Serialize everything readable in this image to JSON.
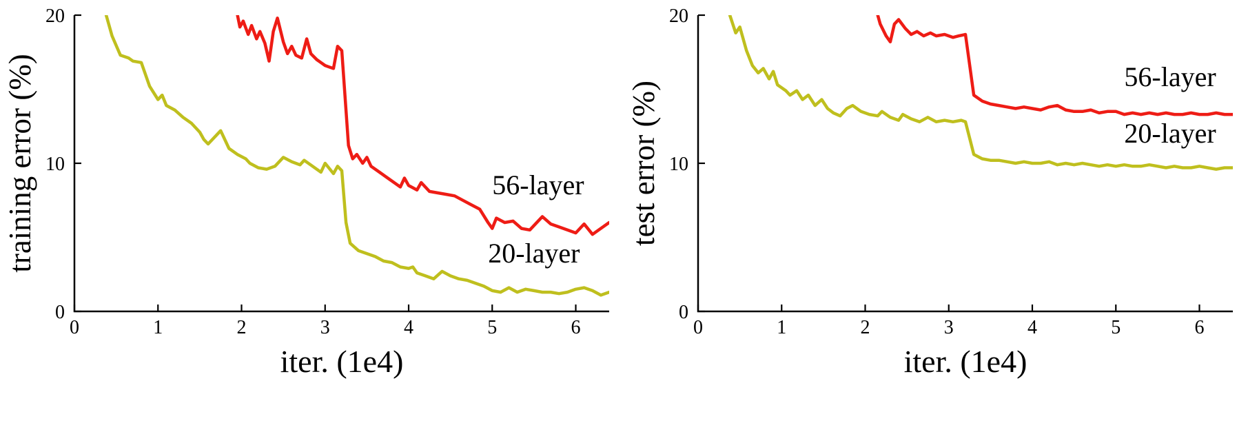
{
  "figure": {
    "background": "#ffffff",
    "axis_color": "#000000"
  },
  "chart_data": [
    {
      "type": "line",
      "title": "",
      "xlabel": "iter. (1e4)",
      "ylabel": "training error (%)",
      "xlim": [
        0,
        6.4
      ],
      "ylim": [
        0,
        20
      ],
      "xticks": [
        0,
        1,
        2,
        3,
        4,
        5,
        6
      ],
      "yticks": [
        0,
        10,
        20
      ],
      "grid": false,
      "legend": "none",
      "series": [
        {
          "name": "56-layer",
          "color": "#ee1c15",
          "points": [
            [
              1.93,
              20.6
            ],
            [
              1.98,
              19.2
            ],
            [
              2.02,
              19.6
            ],
            [
              2.08,
              18.7
            ],
            [
              2.12,
              19.3
            ],
            [
              2.18,
              18.4
            ],
            [
              2.22,
              18.9
            ],
            [
              2.28,
              18.1
            ],
            [
              2.33,
              16.9
            ],
            [
              2.38,
              18.9
            ],
            [
              2.43,
              19.8
            ],
            [
              2.5,
              18.2
            ],
            [
              2.55,
              17.4
            ],
            [
              2.6,
              17.9
            ],
            [
              2.65,
              17.3
            ],
            [
              2.72,
              17.1
            ],
            [
              2.78,
              18.4
            ],
            [
              2.83,
              17.4
            ],
            [
              2.9,
              17.0
            ],
            [
              2.95,
              16.8
            ],
            [
              3.0,
              16.6
            ],
            [
              3.05,
              16.5
            ],
            [
              3.1,
              16.4
            ],
            [
              3.15,
              17.9
            ],
            [
              3.2,
              17.6
            ],
            [
              3.28,
              11.2
            ],
            [
              3.33,
              10.3
            ],
            [
              3.38,
              10.6
            ],
            [
              3.45,
              10.0
            ],
            [
              3.5,
              10.4
            ],
            [
              3.55,
              9.8
            ],
            [
              3.65,
              9.4
            ],
            [
              3.75,
              9.0
            ],
            [
              3.85,
              8.6
            ],
            [
              3.9,
              8.4
            ],
            [
              3.95,
              9.0
            ],
            [
              4.0,
              8.5
            ],
            [
              4.1,
              8.2
            ],
            [
              4.15,
              8.7
            ],
            [
              4.25,
              8.1
            ],
            [
              4.35,
              8.0
            ],
            [
              4.45,
              7.9
            ],
            [
              4.55,
              7.8
            ],
            [
              4.65,
              7.5
            ],
            [
              4.75,
              7.2
            ],
            [
              4.85,
              6.9
            ],
            [
              4.95,
              6.0
            ],
            [
              5.0,
              5.6
            ],
            [
              5.05,
              6.3
            ],
            [
              5.15,
              6.0
            ],
            [
              5.25,
              6.1
            ],
            [
              5.35,
              5.6
            ],
            [
              5.45,
              5.5
            ],
            [
              5.55,
              6.1
            ],
            [
              5.6,
              6.4
            ],
            [
              5.7,
              5.9
            ],
            [
              5.8,
              5.7
            ],
            [
              5.9,
              5.5
            ],
            [
              6.0,
              5.3
            ],
            [
              6.1,
              5.9
            ],
            [
              6.2,
              5.2
            ],
            [
              6.3,
              5.6
            ],
            [
              6.4,
              6.0
            ]
          ]
        },
        {
          "name": "20-layer",
          "color": "#bfbf1e",
          "points": [
            [
              0.34,
              21.5
            ],
            [
              0.38,
              20.0
            ],
            [
              0.45,
              18.6
            ],
            [
              0.55,
              17.3
            ],
            [
              0.65,
              17.1
            ],
            [
              0.7,
              16.9
            ],
            [
              0.8,
              16.8
            ],
            [
              0.9,
              15.2
            ],
            [
              1.0,
              14.3
            ],
            [
              1.05,
              14.6
            ],
            [
              1.1,
              13.9
            ],
            [
              1.2,
              13.6
            ],
            [
              1.3,
              13.1
            ],
            [
              1.4,
              12.7
            ],
            [
              1.5,
              12.1
            ],
            [
              1.55,
              11.6
            ],
            [
              1.6,
              11.3
            ],
            [
              1.7,
              11.9
            ],
            [
              1.75,
              12.2
            ],
            [
              1.85,
              11.0
            ],
            [
              1.95,
              10.6
            ],
            [
              2.05,
              10.3
            ],
            [
              2.1,
              10.0
            ],
            [
              2.2,
              9.7
            ],
            [
              2.3,
              9.6
            ],
            [
              2.4,
              9.8
            ],
            [
              2.5,
              10.4
            ],
            [
              2.6,
              10.1
            ],
            [
              2.7,
              9.9
            ],
            [
              2.75,
              10.2
            ],
            [
              2.85,
              9.8
            ],
            [
              2.95,
              9.4
            ],
            [
              3.0,
              10.0
            ],
            [
              3.1,
              9.3
            ],
            [
              3.15,
              9.8
            ],
            [
              3.2,
              9.5
            ],
            [
              3.25,
              6.0
            ],
            [
              3.3,
              4.6
            ],
            [
              3.4,
              4.1
            ],
            [
              3.5,
              3.9
            ],
            [
              3.6,
              3.7
            ],
            [
              3.7,
              3.4
            ],
            [
              3.8,
              3.3
            ],
            [
              3.9,
              3.0
            ],
            [
              4.0,
              2.9
            ],
            [
              4.05,
              3.0
            ],
            [
              4.1,
              2.6
            ],
            [
              4.2,
              2.4
            ],
            [
              4.3,
              2.2
            ],
            [
              4.4,
              2.7
            ],
            [
              4.5,
              2.4
            ],
            [
              4.6,
              2.2
            ],
            [
              4.7,
              2.1
            ],
            [
              4.8,
              1.9
            ],
            [
              4.9,
              1.7
            ],
            [
              5.0,
              1.4
            ],
            [
              5.1,
              1.3
            ],
            [
              5.2,
              1.6
            ],
            [
              5.3,
              1.3
            ],
            [
              5.4,
              1.5
            ],
            [
              5.5,
              1.4
            ],
            [
              5.6,
              1.3
            ],
            [
              5.7,
              1.3
            ],
            [
              5.8,
              1.2
            ],
            [
              5.9,
              1.3
            ],
            [
              6.0,
              1.5
            ],
            [
              6.1,
              1.6
            ],
            [
              6.2,
              1.4
            ],
            [
              6.3,
              1.1
            ],
            [
              6.4,
              1.3
            ]
          ]
        }
      ],
      "annotations": [
        {
          "text": "56-layer",
          "x": 5.55,
          "y": 7.9
        },
        {
          "text": "20-layer",
          "x": 5.5,
          "y": 3.3
        }
      ]
    },
    {
      "type": "line",
      "title": "",
      "xlabel": "iter. (1e4)",
      "ylabel": "test error (%)",
      "xlim": [
        0,
        6.4
      ],
      "ylim": [
        0,
        20
      ],
      "xticks": [
        0,
        1,
        2,
        3,
        4,
        5,
        6
      ],
      "yticks": [
        0,
        10,
        20
      ],
      "grid": false,
      "legend": "none",
      "series": [
        {
          "name": "56-layer",
          "color": "#ee1c15",
          "points": [
            [
              2.12,
              20.6
            ],
            [
              2.18,
              19.4
            ],
            [
              2.25,
              18.6
            ],
            [
              2.3,
              18.2
            ],
            [
              2.35,
              19.4
            ],
            [
              2.4,
              19.7
            ],
            [
              2.48,
              19.1
            ],
            [
              2.55,
              18.7
            ],
            [
              2.62,
              18.9
            ],
            [
              2.7,
              18.6
            ],
            [
              2.78,
              18.8
            ],
            [
              2.85,
              18.6
            ],
            [
              2.95,
              18.7
            ],
            [
              3.05,
              18.5
            ],
            [
              3.12,
              18.6
            ],
            [
              3.2,
              18.7
            ],
            [
              3.3,
              14.6
            ],
            [
              3.4,
              14.2
            ],
            [
              3.5,
              14.0
            ],
            [
              3.6,
              13.9
            ],
            [
              3.7,
              13.8
            ],
            [
              3.8,
              13.7
            ],
            [
              3.9,
              13.8
            ],
            [
              4.0,
              13.7
            ],
            [
              4.1,
              13.6
            ],
            [
              4.2,
              13.8
            ],
            [
              4.3,
              13.9
            ],
            [
              4.4,
              13.6
            ],
            [
              4.5,
              13.5
            ],
            [
              4.6,
              13.5
            ],
            [
              4.7,
              13.6
            ],
            [
              4.8,
              13.4
            ],
            [
              4.9,
              13.5
            ],
            [
              5.0,
              13.5
            ],
            [
              5.1,
              13.3
            ],
            [
              5.2,
              13.4
            ],
            [
              5.3,
              13.3
            ],
            [
              5.4,
              13.4
            ],
            [
              5.5,
              13.3
            ],
            [
              5.6,
              13.4
            ],
            [
              5.7,
              13.3
            ],
            [
              5.8,
              13.3
            ],
            [
              5.9,
              13.4
            ],
            [
              6.0,
              13.3
            ],
            [
              6.1,
              13.3
            ],
            [
              6.2,
              13.4
            ],
            [
              6.3,
              13.3
            ],
            [
              6.4,
              13.3
            ]
          ]
        },
        {
          "name": "20-layer",
          "color": "#bfbf1e",
          "points": [
            [
              0.34,
              21.5
            ],
            [
              0.38,
              20.0
            ],
            [
              0.45,
              18.8
            ],
            [
              0.5,
              19.2
            ],
            [
              0.58,
              17.6
            ],
            [
              0.65,
              16.6
            ],
            [
              0.72,
              16.1
            ],
            [
              0.78,
              16.4
            ],
            [
              0.85,
              15.7
            ],
            [
              0.9,
              16.2
            ],
            [
              0.95,
              15.3
            ],
            [
              1.05,
              14.9
            ],
            [
              1.1,
              14.6
            ],
            [
              1.18,
              14.9
            ],
            [
              1.25,
              14.3
            ],
            [
              1.32,
              14.6
            ],
            [
              1.4,
              13.9
            ],
            [
              1.48,
              14.3
            ],
            [
              1.55,
              13.7
            ],
            [
              1.62,
              13.4
            ],
            [
              1.7,
              13.2
            ],
            [
              1.78,
              13.7
            ],
            [
              1.85,
              13.9
            ],
            [
              1.95,
              13.5
            ],
            [
              2.05,
              13.3
            ],
            [
              2.15,
              13.2
            ],
            [
              2.2,
              13.5
            ],
            [
              2.3,
              13.1
            ],
            [
              2.4,
              12.9
            ],
            [
              2.45,
              13.3
            ],
            [
              2.55,
              13.0
            ],
            [
              2.65,
              12.8
            ],
            [
              2.75,
              13.1
            ],
            [
              2.85,
              12.8
            ],
            [
              2.95,
              12.9
            ],
            [
              3.05,
              12.8
            ],
            [
              3.15,
              12.9
            ],
            [
              3.2,
              12.8
            ],
            [
              3.3,
              10.6
            ],
            [
              3.4,
              10.3
            ],
            [
              3.5,
              10.2
            ],
            [
              3.6,
              10.2
            ],
            [
              3.7,
              10.1
            ],
            [
              3.8,
              10.0
            ],
            [
              3.9,
              10.1
            ],
            [
              4.0,
              10.0
            ],
            [
              4.1,
              10.0
            ],
            [
              4.2,
              10.1
            ],
            [
              4.3,
              9.9
            ],
            [
              4.4,
              10.0
            ],
            [
              4.5,
              9.9
            ],
            [
              4.6,
              10.0
            ],
            [
              4.7,
              9.9
            ],
            [
              4.8,
              9.8
            ],
            [
              4.9,
              9.9
            ],
            [
              5.0,
              9.8
            ],
            [
              5.1,
              9.9
            ],
            [
              5.2,
              9.8
            ],
            [
              5.3,
              9.8
            ],
            [
              5.4,
              9.9
            ],
            [
              5.5,
              9.8
            ],
            [
              5.6,
              9.7
            ],
            [
              5.7,
              9.8
            ],
            [
              5.8,
              9.7
            ],
            [
              5.9,
              9.7
            ],
            [
              6.0,
              9.8
            ],
            [
              6.1,
              9.7
            ],
            [
              6.2,
              9.6
            ],
            [
              6.3,
              9.7
            ],
            [
              6.4,
              9.7
            ]
          ]
        }
      ],
      "annotations": [
        {
          "text": "56-layer",
          "x": 5.65,
          "y": 15.2
        },
        {
          "text": "20-layer",
          "x": 5.65,
          "y": 11.4
        }
      ]
    }
  ]
}
